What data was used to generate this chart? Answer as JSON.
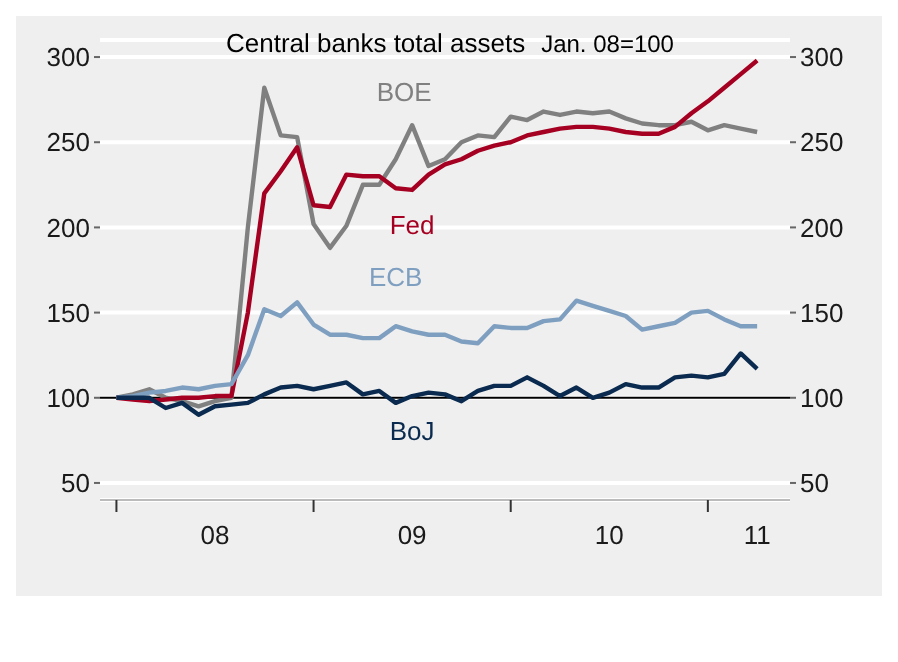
{
  "chart_data": {
    "type": "line",
    "title": "Central banks total assets",
    "subtitle": "Jan. 08=100",
    "x": [
      "2008-01",
      "2008-02",
      "2008-03",
      "2008-04",
      "2008-05",
      "2008-06",
      "2008-07",
      "2008-08",
      "2008-09",
      "2008-10",
      "2008-11",
      "2008-12",
      "2009-01",
      "2009-02",
      "2009-03",
      "2009-04",
      "2009-05",
      "2009-06",
      "2009-07",
      "2009-08",
      "2009-09",
      "2009-10",
      "2009-11",
      "2009-12",
      "2010-01",
      "2010-02",
      "2010-03",
      "2010-04",
      "2010-05",
      "2010-06",
      "2010-07",
      "2010-08",
      "2010-09",
      "2010-10",
      "2010-11",
      "2010-12",
      "2011-01",
      "2011-02",
      "2011-03",
      "2011-04"
    ],
    "series": [
      {
        "name": "BOE",
        "color": "#808080",
        "values": [
          100,
          102,
          105,
          100,
          98,
          95,
          98,
          100,
          200,
          282,
          254,
          253,
          202,
          188,
          201,
          225,
          225,
          240,
          260,
          236,
          240,
          250,
          254,
          253,
          265,
          263,
          268,
          266,
          268,
          267,
          268,
          264,
          261,
          260,
          260,
          262,
          257,
          260,
          258,
          256
        ]
      },
      {
        "name": "Fed",
        "color": "#a50021",
        "values": [
          100,
          99,
          98,
          99,
          100,
          100,
          101,
          101,
          150,
          220,
          233,
          247,
          213,
          212,
          231,
          230,
          230,
          223,
          222,
          231,
          237,
          240,
          245,
          248,
          250,
          254,
          256,
          258,
          259,
          259,
          258,
          256,
          255,
          255,
          259,
          267,
          274,
          282,
          290,
          298
        ]
      },
      {
        "name": "ECB",
        "color": "#7f9fc0",
        "values": [
          100,
          101,
          103,
          104,
          106,
          105,
          107,
          108,
          125,
          152,
          148,
          156,
          143,
          137,
          137,
          135,
          135,
          142,
          139,
          137,
          137,
          133,
          132,
          142,
          141,
          141,
          145,
          146,
          157,
          154,
          151,
          148,
          140,
          142,
          144,
          150,
          151,
          146,
          142,
          142
        ]
      },
      {
        "name": "BoJ",
        "color": "#0a2b4f",
        "values": [
          100,
          100,
          100,
          94,
          97,
          90,
          95,
          96,
          97,
          102,
          106,
          107,
          105,
          107,
          109,
          102,
          104,
          97,
          101,
          103,
          102,
          98,
          104,
          107,
          107,
          112,
          107,
          101,
          106,
          100,
          103,
          108,
          106,
          106,
          112,
          113,
          112,
          114,
          126,
          117
        ]
      }
    ],
    "xlim": [
      "2007-12",
      "2011-06"
    ],
    "xticks": [
      {
        "value": "2008-01",
        "label": null
      },
      {
        "value": "2008-07",
        "label": "08"
      },
      {
        "value": "2009-01",
        "label": null
      },
      {
        "value": "2009-07",
        "label": "09"
      },
      {
        "value": "2010-01",
        "label": null
      },
      {
        "value": "2010-07",
        "label": "10"
      },
      {
        "value": "2011-01",
        "label": null
      },
      {
        "value": "2011-04",
        "label": "11"
      }
    ],
    "ylim": [
      40,
      310
    ],
    "yticks": [
      50,
      100,
      150,
      200,
      250,
      300
    ],
    "y2lim": [
      40,
      310
    ],
    "y2ticks": [
      50,
      100,
      150,
      200,
      250,
      300
    ],
    "ref_lines": [
      {
        "axis": "y",
        "value": 100,
        "color": "#000000"
      }
    ],
    "grid": "y",
    "legend": false,
    "marker": "none",
    "line_style": "solid"
  }
}
